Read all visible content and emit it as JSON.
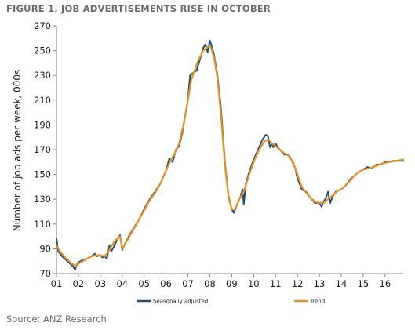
{
  "chart_data": {
    "type": "line",
    "title": "FIGURE 1. JOB ADVERTISEMENTS RISE IN OCTOBER",
    "ylabel": "Number of job ads per week, 000s",
    "xlabel": "",
    "source": "Source: ANZ Research",
    "ylim": [
      70,
      270
    ],
    "xlim": [
      2001,
      2016.83
    ],
    "yticks": [
      70,
      90,
      110,
      130,
      150,
      170,
      190,
      210,
      230,
      250,
      270
    ],
    "xticks": [
      2001,
      2002,
      2003,
      2004,
      2005,
      2006,
      2007,
      2008,
      2009,
      2010,
      2011,
      2012,
      2013,
      2014,
      2015,
      2016
    ],
    "xtick_labels": [
      "01",
      "02",
      "03",
      "04",
      "05",
      "06",
      "07",
      "08",
      "09",
      "10",
      "11",
      "12",
      "13",
      "14",
      "15",
      "16"
    ],
    "grid": false,
    "legend_position": "bottom",
    "series": [
      {
        "name": "Seasonally adjusted",
        "color": "#1f4e79",
        "points": [
          [
            2001.0,
            98
          ],
          [
            2001.08,
            88
          ],
          [
            2001.25,
            84
          ],
          [
            2001.5,
            80
          ],
          [
            2001.75,
            76
          ],
          [
            2001.85,
            73
          ],
          [
            2001.92,
            77
          ],
          [
            2002.0,
            79
          ],
          [
            2002.2,
            81
          ],
          [
            2002.4,
            82
          ],
          [
            2002.6,
            84
          ],
          [
            2002.75,
            86
          ],
          [
            2002.85,
            84
          ],
          [
            2003.0,
            85
          ],
          [
            2003.1,
            83
          ],
          [
            2003.2,
            84
          ],
          [
            2003.3,
            82
          ],
          [
            2003.42,
            93
          ],
          [
            2003.5,
            88
          ],
          [
            2003.6,
            91
          ],
          [
            2003.75,
            97
          ],
          [
            2003.9,
            101
          ],
          [
            2004.0,
            89
          ],
          [
            2004.1,
            93
          ],
          [
            2004.3,
            100
          ],
          [
            2004.5,
            106
          ],
          [
            2004.75,
            113
          ],
          [
            2005.0,
            122
          ],
          [
            2005.25,
            130
          ],
          [
            2005.5,
            136
          ],
          [
            2005.75,
            143
          ],
          [
            2006.0,
            153
          ],
          [
            2006.15,
            163
          ],
          [
            2006.3,
            160
          ],
          [
            2006.45,
            170
          ],
          [
            2006.6,
            173
          ],
          [
            2006.75,
            184
          ],
          [
            2006.9,
            200
          ],
          [
            2007.0,
            210
          ],
          [
            2007.1,
            230
          ],
          [
            2007.25,
            232
          ],
          [
            2007.4,
            234
          ],
          [
            2007.55,
            243
          ],
          [
            2007.7,
            252
          ],
          [
            2007.8,
            255
          ],
          [
            2007.9,
            249
          ],
          [
            2008.0,
            258
          ],
          [
            2008.1,
            253
          ],
          [
            2008.2,
            246
          ],
          [
            2008.35,
            230
          ],
          [
            2008.5,
            205
          ],
          [
            2008.7,
            158
          ],
          [
            2008.85,
            133
          ],
          [
            2009.0,
            122
          ],
          [
            2009.1,
            119
          ],
          [
            2009.25,
            126
          ],
          [
            2009.4,
            132
          ],
          [
            2009.5,
            138
          ],
          [
            2009.55,
            126
          ],
          [
            2009.65,
            143
          ],
          [
            2009.8,
            152
          ],
          [
            2010.0,
            162
          ],
          [
            2010.2,
            170
          ],
          [
            2010.4,
            178
          ],
          [
            2010.55,
            182
          ],
          [
            2010.65,
            181
          ],
          [
            2010.75,
            172
          ],
          [
            2010.85,
            175
          ],
          [
            2010.9,
            172
          ],
          [
            2011.0,
            175
          ],
          [
            2011.1,
            172
          ],
          [
            2011.25,
            169
          ],
          [
            2011.4,
            166
          ],
          [
            2011.6,
            166
          ],
          [
            2011.75,
            161
          ],
          [
            2011.9,
            155
          ],
          [
            2012.0,
            147
          ],
          [
            2012.2,
            138
          ],
          [
            2012.4,
            136
          ],
          [
            2012.6,
            131
          ],
          [
            2012.8,
            127
          ],
          [
            2013.0,
            127
          ],
          [
            2013.1,
            124
          ],
          [
            2013.2,
            128
          ],
          [
            2013.3,
            131
          ],
          [
            2013.4,
            136
          ],
          [
            2013.5,
            127
          ],
          [
            2013.6,
            132
          ],
          [
            2013.75,
            136
          ],
          [
            2014.0,
            138
          ],
          [
            2014.2,
            141
          ],
          [
            2014.4,
            146
          ],
          [
            2014.6,
            149
          ],
          [
            2014.8,
            152
          ],
          [
            2015.0,
            154
          ],
          [
            2015.2,
            156
          ],
          [
            2015.4,
            155
          ],
          [
            2015.6,
            158
          ],
          [
            2015.8,
            158
          ],
          [
            2016.0,
            160
          ],
          [
            2016.2,
            160
          ],
          [
            2016.4,
            161
          ],
          [
            2016.6,
            161
          ],
          [
            2016.83,
            161
          ]
        ]
      },
      {
        "name": "Trend",
        "color": "#e69222",
        "points": [
          [
            2001.0,
            93
          ],
          [
            2001.15,
            88
          ],
          [
            2001.4,
            83
          ],
          [
            2001.7,
            78
          ],
          [
            2001.9,
            76
          ],
          [
            2002.0,
            78
          ],
          [
            2002.3,
            81
          ],
          [
            2002.6,
            84
          ],
          [
            2002.9,
            85
          ],
          [
            2003.2,
            84
          ],
          [
            2003.35,
            87
          ],
          [
            2003.5,
            92
          ],
          [
            2003.7,
            97
          ],
          [
            2003.9,
            100
          ],
          [
            2004.0,
            90
          ],
          [
            2004.2,
            96
          ],
          [
            2004.5,
            105
          ],
          [
            2004.75,
            113
          ],
          [
            2005.0,
            121
          ],
          [
            2005.25,
            129
          ],
          [
            2005.5,
            135
          ],
          [
            2005.75,
            143
          ],
          [
            2006.0,
            153
          ],
          [
            2006.2,
            161
          ],
          [
            2006.4,
            167
          ],
          [
            2006.6,
            175
          ],
          [
            2006.8,
            190
          ],
          [
            2007.0,
            210
          ],
          [
            2007.15,
            226
          ],
          [
            2007.3,
            234
          ],
          [
            2007.5,
            243
          ],
          [
            2007.7,
            250
          ],
          [
            2007.9,
            253
          ],
          [
            2008.05,
            253
          ],
          [
            2008.2,
            244
          ],
          [
            2008.35,
            228
          ],
          [
            2008.5,
            200
          ],
          [
            2008.7,
            156
          ],
          [
            2008.85,
            132
          ],
          [
            2009.0,
            122
          ],
          [
            2009.15,
            122
          ],
          [
            2009.35,
            130
          ],
          [
            2009.55,
            136
          ],
          [
            2009.8,
            150
          ],
          [
            2010.0,
            160
          ],
          [
            2010.25,
            170
          ],
          [
            2010.5,
            177
          ],
          [
            2010.7,
            178
          ],
          [
            2010.85,
            175
          ],
          [
            2011.0,
            173
          ],
          [
            2011.2,
            170
          ],
          [
            2011.4,
            167
          ],
          [
            2011.6,
            165
          ],
          [
            2011.8,
            160
          ],
          [
            2012.0,
            150
          ],
          [
            2012.2,
            140
          ],
          [
            2012.5,
            133
          ],
          [
            2012.8,
            128
          ],
          [
            2013.0,
            127
          ],
          [
            2013.2,
            127
          ],
          [
            2013.4,
            130
          ],
          [
            2013.6,
            133
          ],
          [
            2013.85,
            137
          ],
          [
            2014.0,
            138
          ],
          [
            2014.3,
            143
          ],
          [
            2014.6,
            149
          ],
          [
            2014.8,
            152
          ],
          [
            2015.0,
            154
          ],
          [
            2015.3,
            155
          ],
          [
            2015.6,
            157
          ],
          [
            2015.9,
            159
          ],
          [
            2016.2,
            160
          ],
          [
            2016.5,
            161
          ],
          [
            2016.83,
            162
          ]
        ]
      }
    ]
  }
}
